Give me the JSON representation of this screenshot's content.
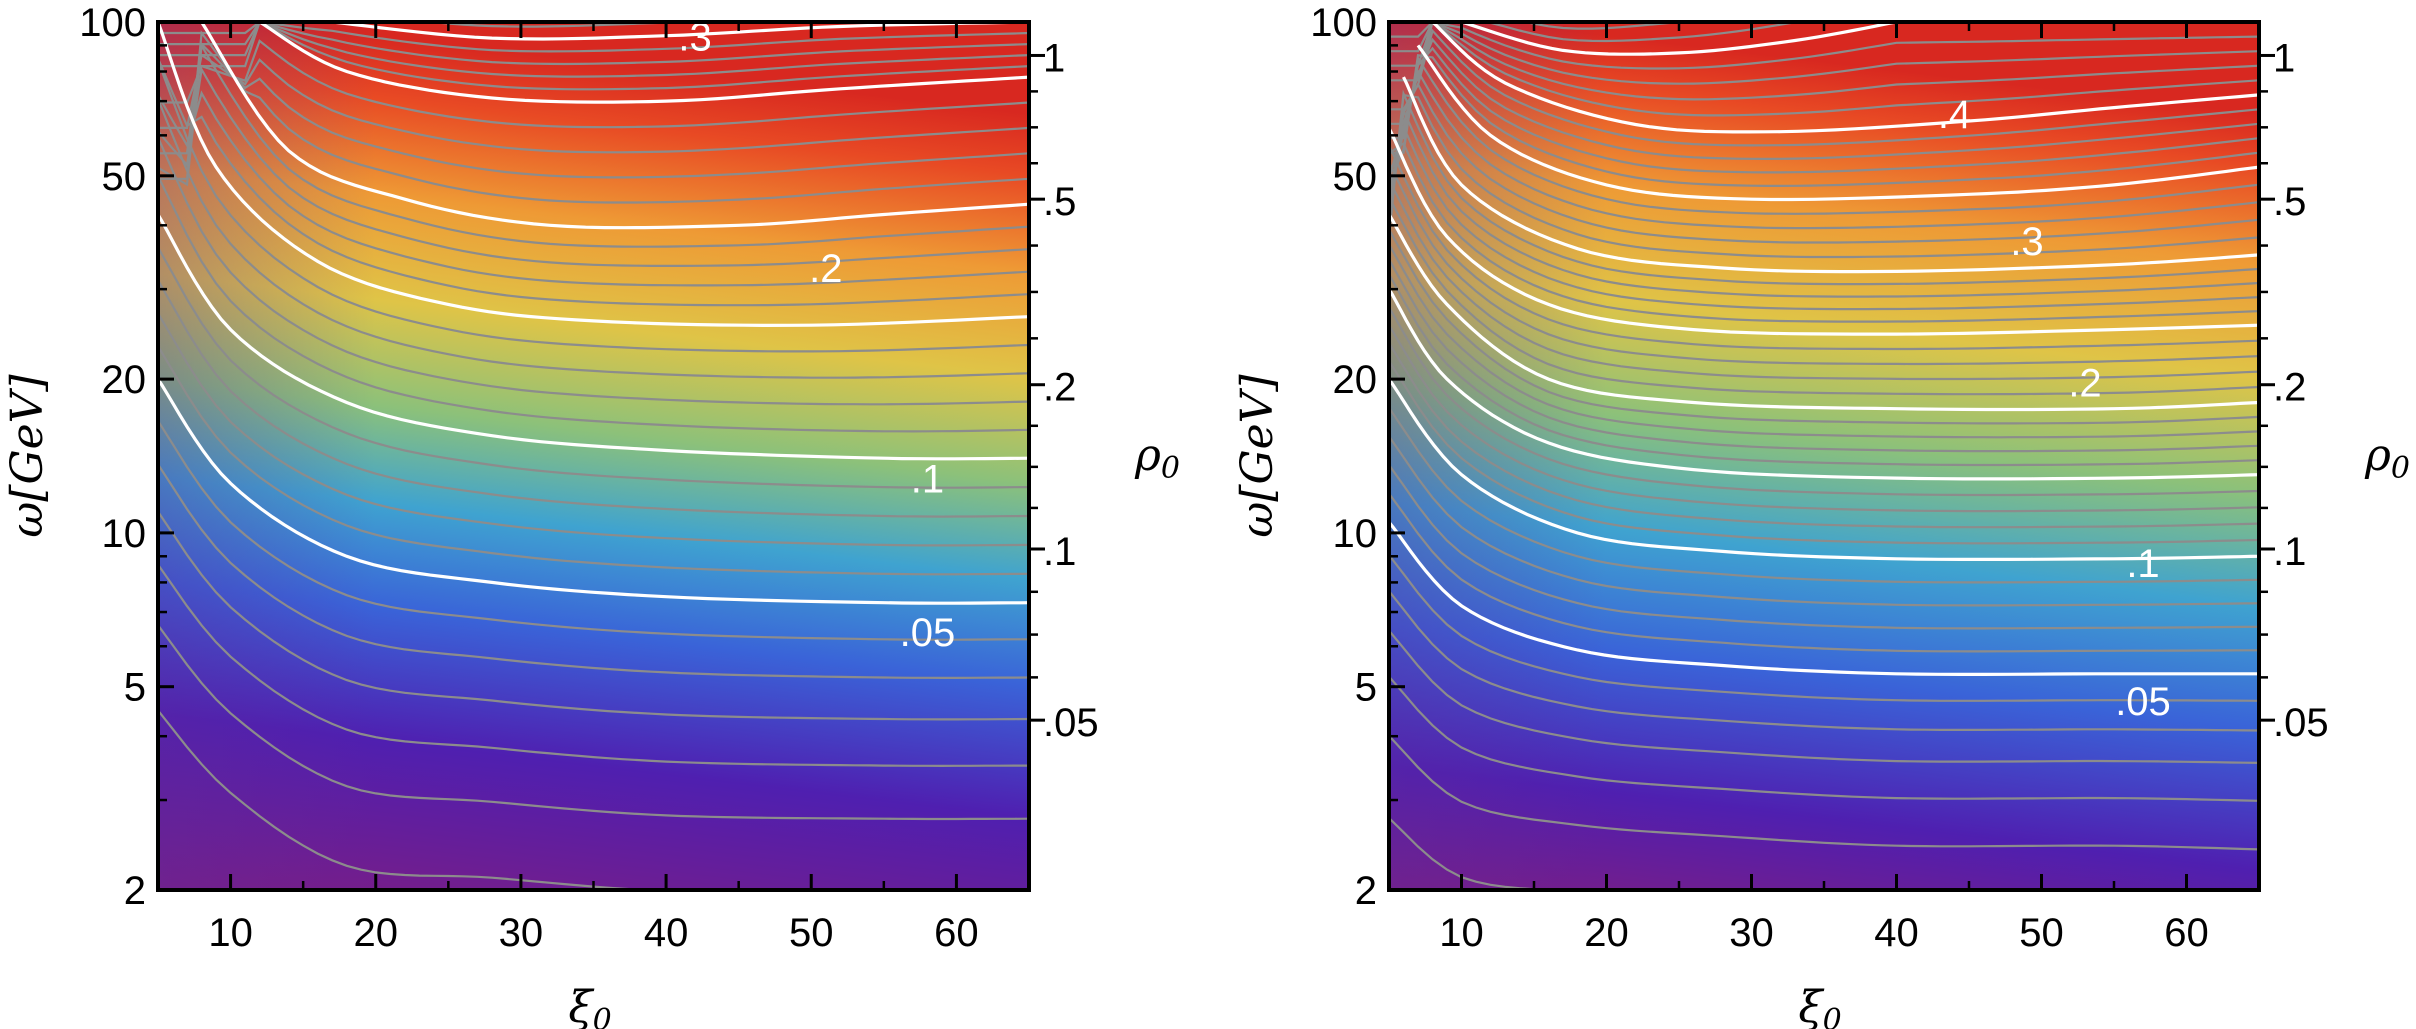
{
  "chart_data": [
    {
      "type": "contour",
      "panel": "left",
      "xlabel": "ξ",
      "xlabel_sub": "0",
      "ylabel": "ω[GeV]",
      "right_label": "ρ",
      "right_label_sub": "0",
      "xlim": [
        5,
        65
      ],
      "ylim": [
        2,
        100
      ],
      "y_scale": "log",
      "x_ticks": [
        10,
        20,
        30,
        40,
        50,
        60
      ],
      "x_tick_labels": [
        "10",
        "20",
        "30",
        "40",
        "50",
        "60"
      ],
      "y_ticks": [
        2,
        5,
        10,
        20,
        50,
        100
      ],
      "y_tick_labels": [
        "2",
        "5",
        "10",
        "20",
        "50",
        "100"
      ],
      "right_ticks": [
        {
          "label": "1",
          "omega": 86
        },
        {
          "label": ".5",
          "omega": 45
        },
        {
          "label": ".2",
          "omega": 19.5
        },
        {
          "label": ".1",
          "omega": 9.3
        },
        {
          "label": ".05",
          "omega": 4.3
        }
      ],
      "contour_labels": [
        {
          "text": ".3",
          "xi": 42,
          "omega": 88
        },
        {
          "text": ".2",
          "xi": 51,
          "omega": 31
        },
        {
          "text": ".1",
          "xi": 58,
          "omega": 12
        },
        {
          "text": ".05",
          "xi": 58,
          "omega": 6
        }
      ],
      "major_contours": [
        {
          "level": 0.3,
          "points": [
            [
              17,
              100
            ],
            [
              28,
              93
            ],
            [
              40,
              94
            ],
            [
              52,
              98
            ],
            [
              65,
              100
            ]
          ]
        },
        {
          "level": 0.25,
          "points": [
            [
              12,
              100
            ],
            [
              18,
              80
            ],
            [
              28,
              71
            ],
            [
              40,
              70
            ],
            [
              52,
              74
            ],
            [
              65,
              78
            ]
          ]
        },
        {
          "level": 0.2,
          "points": [
            [
              8,
              100
            ],
            [
              14,
              56
            ],
            [
              22,
              45
            ],
            [
              32,
              40
            ],
            [
              45,
              40
            ],
            [
              55,
              42
            ],
            [
              65,
              44
            ]
          ]
        },
        {
          "level": 0.15,
          "points": [
            [
              5,
              100
            ],
            [
              9,
              52
            ],
            [
              16,
              34
            ],
            [
              25,
              28
            ],
            [
              35,
              26
            ],
            [
              50,
              25.5
            ],
            [
              65,
              26.5
            ]
          ]
        },
        {
          "level": 0.1,
          "points": [
            [
              5,
              42
            ],
            [
              10,
              25
            ],
            [
              18,
              18
            ],
            [
              28,
              15.5
            ],
            [
              40,
              14.5
            ],
            [
              55,
              14
            ],
            [
              65,
              14
            ]
          ]
        },
        {
          "level": 0.05,
          "points": [
            [
              5,
              20
            ],
            [
              10,
              12.5
            ],
            [
              18,
              9
            ],
            [
              28,
              8
            ],
            [
              40,
              7.5
            ],
            [
              55,
              7.3
            ],
            [
              65,
              7.3
            ]
          ]
        }
      ],
      "colormap": [
        "#7a1d85",
        "#4f1fb0",
        "#3a63d8",
        "#3fa3d0",
        "#8cc17a",
        "#dfc447",
        "#ee9a35",
        "#e84a24",
        "#d82820"
      ]
    },
    {
      "type": "contour",
      "panel": "right",
      "xlabel": "ξ",
      "xlabel_sub": "0",
      "ylabel": "ω[GeV]",
      "right_label": "ρ",
      "right_label_sub": "0",
      "xlim": [
        5,
        65
      ],
      "ylim": [
        2,
        100
      ],
      "y_scale": "log",
      "x_ticks": [
        10,
        20,
        30,
        40,
        50,
        60
      ],
      "x_tick_labels": [
        "10",
        "20",
        "30",
        "40",
        "50",
        "60"
      ],
      "y_ticks": [
        2,
        5,
        10,
        20,
        50,
        100
      ],
      "y_tick_labels": [
        "2",
        "5",
        "10",
        "20",
        "50",
        "100"
      ],
      "right_ticks": [
        {
          "label": "1",
          "omega": 86
        },
        {
          "label": ".5",
          "omega": 45
        },
        {
          "label": ".2",
          "omega": 19.5
        },
        {
          "label": ".1",
          "omega": 9.3
        },
        {
          "label": ".05",
          "omega": 4.3
        }
      ],
      "contour_labels": [
        {
          "text": ".4",
          "xi": 44,
          "omega": 62
        },
        {
          "text": ".3",
          "xi": 49,
          "omega": 35
        },
        {
          "text": ".2",
          "xi": 53,
          "omega": 18.5
        },
        {
          "text": ".1",
          "xi": 57,
          "omega": 8.2
        },
        {
          "text": ".05",
          "xi": 57,
          "omega": 4.4
        }
      ],
      "major_contours": [
        {
          "level": 0.45,
          "points": [
            [
              10,
              100
            ],
            [
              17,
              88
            ],
            [
              25,
              87
            ],
            [
              33,
              92
            ],
            [
              40,
              100
            ]
          ]
        },
        {
          "level": 0.4,
          "points": [
            [
              8,
              100
            ],
            [
              13,
              76
            ],
            [
              22,
              63
            ],
            [
              32,
              61
            ],
            [
              45,
              64
            ],
            [
              55,
              68
            ],
            [
              65,
              72
            ]
          ]
        },
        {
          "level": 0.35,
          "points": [
            [
              7,
              90
            ],
            [
              12,
              60
            ],
            [
              20,
              48
            ],
            [
              30,
              45
            ],
            [
              45,
              46
            ],
            [
              55,
              48
            ],
            [
              65,
              52
            ]
          ]
        },
        {
          "level": 0.3,
          "points": [
            [
              6,
              78
            ],
            [
              10,
              48
            ],
            [
              18,
              36
            ],
            [
              28,
              33
            ],
            [
              40,
              32.5
            ],
            [
              55,
              33.5
            ],
            [
              65,
              35
            ]
          ]
        },
        {
          "level": 0.25,
          "points": [
            [
              5,
              62
            ],
            [
              9,
              38
            ],
            [
              16,
              28
            ],
            [
              26,
              25
            ],
            [
              40,
              24.5
            ],
            [
              55,
              25
            ],
            [
              65,
              25.5
            ]
          ]
        },
        {
          "level": 0.2,
          "points": [
            [
              5,
              42
            ],
            [
              9,
              28
            ],
            [
              16,
              20
            ],
            [
              26,
              18
            ],
            [
              40,
              17.5
            ],
            [
              55,
              17.5
            ],
            [
              65,
              18
            ]
          ]
        },
        {
          "level": 0.15,
          "points": [
            [
              5,
              30
            ],
            [
              9,
              20
            ],
            [
              16,
              15
            ],
            [
              26,
              13.3
            ],
            [
              40,
              12.8
            ],
            [
              55,
              12.8
            ],
            [
              65,
              13
            ]
          ]
        },
        {
          "level": 0.1,
          "points": [
            [
              5,
              20
            ],
            [
              10,
              13
            ],
            [
              18,
              10
            ],
            [
              28,
              9.2
            ],
            [
              40,
              8.9
            ],
            [
              55,
              8.9
            ],
            [
              65,
              9
            ]
          ]
        },
        {
          "level": 0.05,
          "points": [
            [
              5,
              10.5
            ],
            [
              10,
              7.2
            ],
            [
              18,
              5.9
            ],
            [
              28,
              5.5
            ],
            [
              40,
              5.3
            ],
            [
              55,
              5.3
            ],
            [
              65,
              5.3
            ]
          ]
        }
      ],
      "colormap": [
        "#7a1d85",
        "#4f1fb0",
        "#3a63d8",
        "#3fa3d0",
        "#8cc17a",
        "#dfc447",
        "#ee9a35",
        "#e84a24",
        "#d82820"
      ]
    }
  ]
}
